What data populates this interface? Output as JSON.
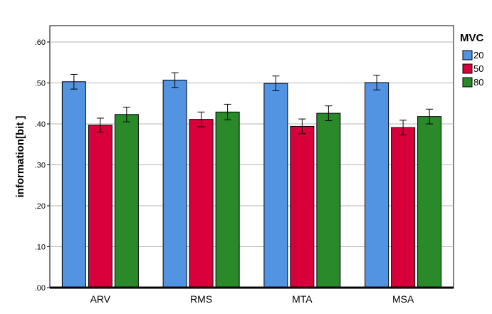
{
  "chart_data": {
    "type": "bar",
    "title": "",
    "xlabel": "",
    "ylabel": "information[bit ]",
    "ylim": [
      0,
      0.64
    ],
    "y_ticks": [
      ".00",
      ".10",
      ".20",
      ".30",
      ".40",
      ".50",
      ".60"
    ],
    "y_tick_values": [
      0,
      0.1,
      0.2,
      0.3,
      0.4,
      0.5,
      0.6
    ],
    "grid": "horizontal",
    "legend_title": "MVC",
    "legend_position": "right",
    "categories": [
      "ARV",
      "RMS",
      "MTA",
      "MSA"
    ],
    "series": [
      {
        "name": "20",
        "color": "#5294e2",
        "values": [
          0.503,
          0.507,
          0.499,
          0.501
        ],
        "error": [
          0.018,
          0.018,
          0.018,
          0.018
        ]
      },
      {
        "name": "50",
        "color": "#d8003a",
        "values": [
          0.397,
          0.411,
          0.394,
          0.391
        ],
        "error": [
          0.017,
          0.018,
          0.018,
          0.018
        ]
      },
      {
        "name": "80",
        "color": "#2a8a2a",
        "values": [
          0.423,
          0.429,
          0.426,
          0.418
        ],
        "error": [
          0.018,
          0.019,
          0.018,
          0.018
        ]
      }
    ]
  }
}
